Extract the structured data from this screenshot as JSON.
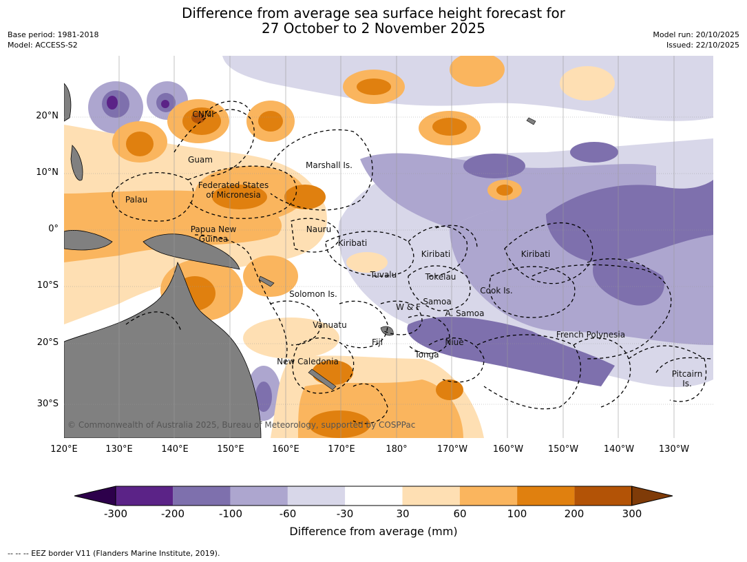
{
  "title": {
    "line1": "Difference from average sea surface height forecast for",
    "line2": "27 October to 2 November 2025"
  },
  "meta_left": {
    "base_period": "Base period: 1981-2018",
    "model": "Model: ACCESS-S2"
  },
  "meta_right": {
    "model_run": "Model run: 20/10/2025",
    "issued": "Issued: 22/10/2025"
  },
  "lon_ticks": [
    "120°E",
    "130°E",
    "140°E",
    "150°E",
    "160°E",
    "170°E",
    "180°",
    "170°W",
    "160°W",
    "150°W",
    "140°W",
    "130°W"
  ],
  "lat_ticks": [
    "20°N",
    "10°N",
    "0°",
    "10°S",
    "20°S",
    "30°S"
  ],
  "map_labels": {
    "cnmi": "CNMI",
    "guam": "Guam",
    "marshall": "Marshall Is.",
    "fsm1": "Federated States",
    "fsm2": "of Micronesia",
    "palau": "Palau",
    "png1": "Papua New",
    "png2": "Guinea",
    "nauru": "Nauru",
    "kiribati_w": "Kiribati",
    "kiribati_c": "Kiribati",
    "kiribati_e": "Kiribati",
    "tuvalu": "Tuvalu",
    "tokelau": "Tokelau",
    "cook": "Cook Is.",
    "solomon": "Solomon Is.",
    "wf": "W & F",
    "samoa": "Samoa",
    "asamoa": "A. Samoa",
    "vanuatu": "Vanuatu",
    "fiji": "Fiji",
    "niue": "Niue",
    "tonga": "Tonga",
    "fp": "French Polynesia",
    "newcal": "New Caledonia",
    "pitcairn1": "Pitcairn",
    "pitcairn2": "Is."
  },
  "copyright": "© Commonwealth of Australia 2025, Bureau of Meteorology, supported by COSPPac",
  "colorbar": {
    "label": "Difference from average (mm)",
    "ticks": [
      "-300",
      "-200",
      "-100",
      "-60",
      "-30",
      "30",
      "60",
      "100",
      "200",
      "300"
    ],
    "colors": [
      "#5b2387",
      "#7e70ad",
      "#ada6cf",
      "#d8d7e9",
      "#ffffff",
      "#fedfb3",
      "#fab55e",
      "#e0800f",
      "#b35306"
    ],
    "extend_low": "#2d004b",
    "extend_high": "#7f3b08"
  },
  "colors": {
    "land": "#808080",
    "low": "#7e70ad",
    "high": "#e0800f"
  },
  "eez_note": "--  --  -- EEZ border V11 (Flanders Marine Institute, 2019)."
}
